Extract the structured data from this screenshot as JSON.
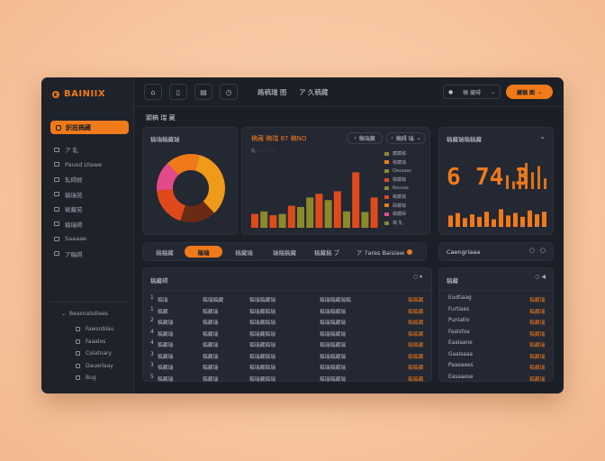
{
  "app": {
    "brand": "BAINIIX"
  },
  "sidebar": {
    "active_label": "訳抵稿藏",
    "items": [
      {
        "label": "ア 轧"
      },
      {
        "label": "Pausd Ulawe"
      },
      {
        "label": "轧碍顾"
      },
      {
        "label": "稿瑞苑"
      },
      {
        "label": "剔藏苑"
      },
      {
        "label": "稿瑞碍"
      },
      {
        "label": "Saaaae"
      },
      {
        "label": "ア稿碍"
      }
    ],
    "group_label": "Beasnaisdiaes",
    "sub_items": [
      {
        "label": "Fawsnblau"
      },
      {
        "label": "Faaalos"
      },
      {
        "label": "Colatnary"
      },
      {
        "label": "Dauerlaay"
      },
      {
        "label": "Bug"
      }
    ]
  },
  "topbar": {
    "nav1": "路稿瑞 图",
    "nav2": "ア 久稿藏",
    "select_label": "稿 藏碍",
    "cta_label": "藏稿 图"
  },
  "main": {
    "section_title": "顕稿 瑞 藏",
    "donut_card": {
      "title": "稿瑞稿藏瑞"
    },
    "bar_card": {
      "title": "稿藏 稿瑞 87 稿NO",
      "subtitle": "轧 · · · · · · ·",
      "chip1": "稿瑞藏",
      "chip2": "稿碍 瑞",
      "legend": [
        "藏藏稿",
        "稿藏瑞",
        "Oessaas",
        "稿藏稿",
        "Rousse",
        "稿藏稿",
        "碍藏稿",
        "稿藏碍",
        "稿 轧"
      ]
    },
    "stat_card": {
      "title": "稿藏瑞稿稿藏",
      "value": "6, 74 3",
      "value_left": "6",
      "value_mid": "74",
      "value_right": "3"
    },
    "tabs": [
      "稿稿藏",
      "稿瑞",
      "稿藏瑞",
      "瑞稿稿藏",
      "稿藏稿 ブ",
      "ア 7ares Baisiaw"
    ],
    "right_tab": "Caengriaaa",
    "table": {
      "title": "稿藏碍",
      "rows": [
        {
          "n": "1",
          "c1": "稿瑞",
          "c2": "稿瑞稿藏",
          "c3": "稿瑞稿藏瑞",
          "c4": "稿瑞稿藏瑞稿",
          "c5": "稿稿藏"
        },
        {
          "n": "1",
          "c1": "稿藏",
          "c2": "稿藏瑞",
          "c3": "稿瑞藏稿瑞",
          "c4": "稿瑞稿藏瑞",
          "c5": "稿稿藏"
        },
        {
          "n": "2",
          "c1": "稿藏瑞",
          "c2": "稿藏瑞",
          "c3": "稿瑞藏稿瑞",
          "c4": "稿瑞稿藏瑞",
          "c5": "稿稿藏"
        },
        {
          "n": "4",
          "c1": "稿藏瑞",
          "c2": "稿藏瑞",
          "c3": "稿瑞藏稿瑞",
          "c4": "稿瑞稿藏瑞",
          "c5": "稿稿藏"
        },
        {
          "n": "4",
          "c1": "稿藏瑞",
          "c2": "稿藏瑞",
          "c3": "稿瑞藏稿瑞",
          "c4": "稿瑞稿藏瑞",
          "c5": "稿稿藏"
        },
        {
          "n": "3",
          "c1": "稿藏瑞",
          "c2": "稿藏瑞",
          "c3": "稿瑞藏稿瑞",
          "c4": "稿瑞稿藏瑞",
          "c5": "稿稿藏"
        },
        {
          "n": "3",
          "c1": "稿藏瑞",
          "c2": "稿藏瑞",
          "c3": "稿瑞藏稿瑞",
          "c4": "稿瑞稿藏瑞",
          "c5": "稿稿藏"
        },
        {
          "n": "5",
          "c1": "稿藏瑞",
          "c2": "稿藏瑞",
          "c3": "稿瑞藏稿瑞",
          "c4": "稿瑞稿藏瑞",
          "c5": "稿稿藏"
        }
      ]
    },
    "right_table": {
      "title": "稿藏",
      "rows": [
        {
          "label": "Eudtiaag",
          "val": "稿藏瑞"
        },
        {
          "label": "Furtiaes",
          "val": "稿藏瑞"
        },
        {
          "label": "Punlatio",
          "val": "稿藏瑞"
        },
        {
          "label": "Faalsfoa",
          "val": "稿藏瑞"
        },
        {
          "label": "Eaalaane",
          "val": "稿藏瑞"
        },
        {
          "label": "Gaalsaaa",
          "val": "稿藏瑞"
        },
        {
          "label": "Paaeaees",
          "val": "稿藏瑞"
        },
        {
          "label": "Easaaese",
          "val": "稿藏瑞"
        }
      ]
    }
  },
  "colors": {
    "accent": "#f07a1a",
    "olive": "#8a8a2a",
    "red": "#e04a1a",
    "pink": "#e24a8a",
    "brown": "#6a2a14",
    "amber": "#f09a1a"
  },
  "chart_data": [
    {
      "type": "pie",
      "slices": [
        {
          "value": 34,
          "color": "#f09a1a"
        },
        {
          "value": 17,
          "color": "#6a2a14"
        },
        {
          "value": 19,
          "color": "#e04a1a"
        },
        {
          "value": 14,
          "color": "#e24a8a"
        },
        {
          "value": 16,
          "color": "#f07a1a"
        }
      ]
    },
    {
      "type": "bar",
      "values": [
        22,
        26,
        20,
        22,
        35,
        33,
        48,
        54,
        44,
        58,
        26,
        88,
        25,
        48
      ],
      "colors": [
        "#e04a1a",
        "#8a8a2a",
        "#e04a1a",
        "#8a8a2a",
        "#e04a1a",
        "#8a8a2a",
        "#8a8a2a",
        "#e04a1a",
        "#8a8a2a",
        "#e04a1a",
        "#8a8a2a",
        "#e04a1a",
        "#8a8a2a",
        "#e04a1a"
      ],
      "ylim": [
        0,
        100
      ]
    },
    {
      "type": "bar",
      "values": [
        18,
        22,
        14,
        20,
        16,
        24,
        12,
        28,
        18,
        22,
        16,
        26,
        20,
        24
      ],
      "color": "#f07a1a",
      "ylim": [
        0,
        40
      ]
    },
    {
      "type": "bar",
      "values": [
        18,
        10,
        26,
        34,
        22,
        30,
        14
      ],
      "color": "#f07a1a",
      "ylim": [
        0,
        40
      ]
    }
  ]
}
